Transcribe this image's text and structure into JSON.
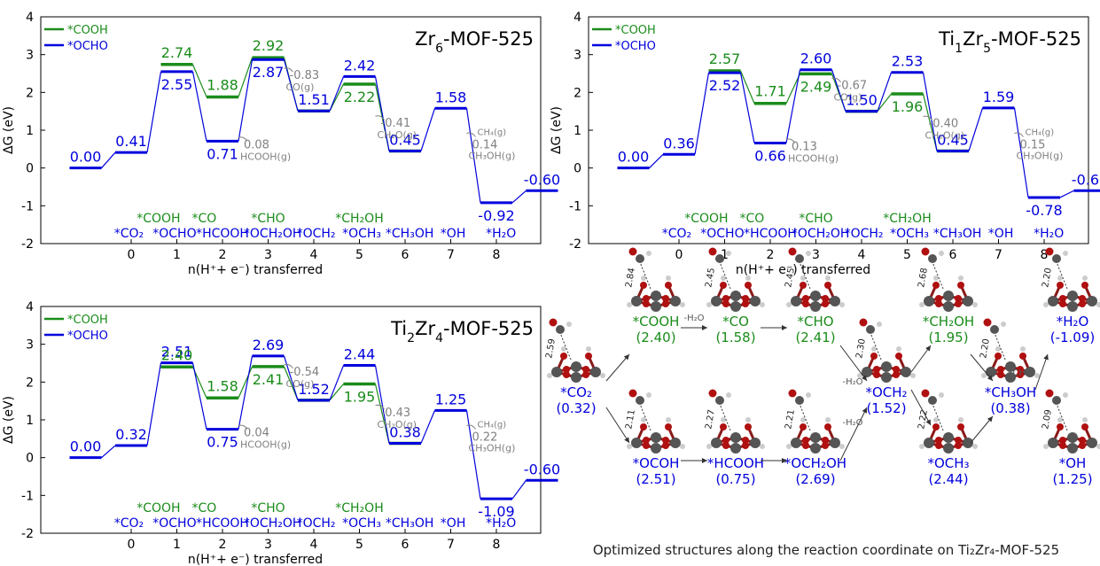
{
  "figure": {
    "caption": "Optimized structures along the reaction coordinate on Ti₂Zr₄-MOF-525",
    "colors": {
      "cooh": "#1a8c1a",
      "ocho": "#0000dd",
      "gray": "#808080"
    },
    "legend_labels": [
      "*COOH",
      "*OCHO"
    ]
  },
  "chart_data": [
    {
      "type": "line",
      "title_main": "Zr",
      "title_sub": "6",
      "title_rest": "-MOF-525",
      "xlabel": "n(H⁺+ e⁻) transferred",
      "ylabel": "ΔG (eV)",
      "ylim": [
        -2,
        4
      ],
      "x_ticks": [
        0,
        1,
        2,
        3,
        4,
        5,
        6,
        7,
        8
      ],
      "y_ticks": [
        4,
        3,
        2,
        1,
        0,
        -1,
        -2
      ],
      "series": [
        {
          "name": "*OCHO",
          "x": [
            -1,
            0,
            1,
            2,
            3,
            4,
            5,
            6,
            7,
            8,
            9
          ],
          "values": [
            0.0,
            0.41,
            2.55,
            0.71,
            2.87,
            1.51,
            2.42,
            0.45,
            1.58,
            -0.92,
            -0.6
          ],
          "labels": [
            "0.00",
            "0.41",
            "2.55",
            "0.71",
            "2.87",
            "1.51",
            "2.42",
            "0.45",
            "1.58",
            "-0.92",
            "-0.60"
          ]
        },
        {
          "name": "*COOH",
          "x": [
            1,
            2,
            3,
            4,
            5,
            6
          ],
          "values": [
            2.74,
            1.88,
            2.92,
            1.51,
            2.22,
            0.45
          ],
          "labels": [
            "2.74",
            "1.88",
            "2.92",
            "",
            "2.22",
            ""
          ]
        }
      ],
      "side_products": [
        {
          "x": 3,
          "value": "-0.83",
          "species": "CO(g)"
        },
        {
          "x": 2,
          "value": "0.08",
          "species": "HCOOH(g)"
        },
        {
          "x": 5,
          "value": "-0.41",
          "species": "CH₂O(g)"
        },
        {
          "x": 7,
          "species_top": "CH₄(g)",
          "value": "0.14",
          "species": "CH₃OH(g)"
        }
      ],
      "green_species": [
        "*COOH",
        "*CO",
        "*CHO",
        "*CH₂OH"
      ],
      "blue_species": [
        "*CO₂",
        "*OCHO",
        "*HCOOH",
        "*OCH₂OH",
        "*OCH₂",
        "*OCH₃",
        "*CH₃OH",
        "*OH",
        "*H₂O"
      ]
    },
    {
      "type": "line",
      "title_main": "Ti",
      "title_sub": "1",
      "title_rest": "Zr",
      "title_sub2": "5",
      "title_rest2": "-MOF-525",
      "xlabel": "n(H⁺+ e⁻) transferred",
      "ylabel": "ΔG (eV)",
      "ylim": [
        -2,
        4
      ],
      "x_ticks": [
        0,
        1,
        2,
        3,
        4,
        5,
        6,
        7,
        8
      ],
      "y_ticks": [
        4,
        3,
        2,
        1,
        0,
        -1,
        -2
      ],
      "series": [
        {
          "name": "*OCHO",
          "x": [
            -1,
            0,
            1,
            2,
            3,
            4,
            5,
            6,
            7,
            8,
            9
          ],
          "values": [
            0.0,
            0.36,
            2.52,
            0.66,
            2.6,
            1.5,
            2.53,
            0.45,
            1.59,
            -0.78,
            -0.6
          ],
          "labels": [
            "0.00",
            "0.36",
            "2.52",
            "0.66",
            "2.60",
            "1.50",
            "2.53",
            "0.45",
            "1.59",
            "-0.78",
            "-0.60"
          ]
        },
        {
          "name": "*COOH",
          "x": [
            1,
            2,
            3,
            4,
            5,
            6
          ],
          "values": [
            2.57,
            1.71,
            2.49,
            1.5,
            1.96,
            0.45
          ],
          "labels": [
            "2.57",
            "1.71",
            "2.49",
            "",
            "1.96",
            ""
          ]
        }
      ],
      "side_products": [
        {
          "x": 3,
          "value": "-0.67",
          "species": "CO(g)"
        },
        {
          "x": 2,
          "value": "0.13",
          "species": "HCOOH(g)"
        },
        {
          "x": 5,
          "value": "-0.40",
          "species": "CH₂O(g)"
        },
        {
          "x": 7,
          "species_top": "CH₄(g)",
          "value": "0.15",
          "species": "CH₃OH(g)"
        }
      ],
      "green_species": [
        "*COOH",
        "*CO",
        "*CHO",
        "*CH₂OH"
      ],
      "blue_species": [
        "*CO₂",
        "*OCHO",
        "*HCOOH",
        "*OCH₂OH",
        "*OCH₂",
        "*OCH₃",
        "*CH₃OH",
        "*OH",
        "*H₂O"
      ]
    },
    {
      "type": "line",
      "title_main": "Ti",
      "title_sub": "2",
      "title_rest": "Zr",
      "title_sub2": "4",
      "title_rest2": "-MOF-525",
      "xlabel": "n(H⁺+ e⁻) transferred",
      "ylabel": "ΔG (eV)",
      "ylim": [
        -2,
        4
      ],
      "x_ticks": [
        0,
        1,
        2,
        3,
        4,
        5,
        6,
        7,
        8
      ],
      "y_ticks": [
        4,
        3,
        2,
        1,
        0,
        -1,
        -2
      ],
      "series": [
        {
          "name": "*OCHO",
          "x": [
            -1,
            0,
            1,
            2,
            3,
            4,
            5,
            6,
            7,
            8,
            9
          ],
          "values": [
            0.0,
            0.32,
            2.51,
            0.75,
            2.69,
            1.52,
            2.44,
            0.38,
            1.25,
            -1.09,
            -0.6
          ],
          "labels": [
            "0.00",
            "0.32",
            "2.51",
            "0.75",
            "2.69",
            "1.52",
            "2.44",
            "0.38",
            "1.25",
            "-1.09",
            "-0.60"
          ]
        },
        {
          "name": "*COOH",
          "x": [
            1,
            2,
            3,
            4,
            5,
            6
          ],
          "values": [
            2.4,
            1.58,
            2.41,
            1.52,
            1.95,
            0.38
          ],
          "labels": [
            "2.40",
            "1.58",
            "2.41",
            "",
            "1.95",
            ""
          ]
        }
      ],
      "side_products": [
        {
          "x": 3,
          "value": "-0.54",
          "species": "CO(g)"
        },
        {
          "x": 2,
          "value": "0.04",
          "species": "HCOOH(g)"
        },
        {
          "x": 5,
          "value": "-0.43",
          "species": "CH₂O(g)"
        },
        {
          "x": 7,
          "species_top": "CH₄(g)",
          "value": "0.22",
          "species": "CH₃OH(g)"
        }
      ],
      "green_species": [
        "*COOH",
        "*CO",
        "*CHO",
        "*CH₂OH"
      ],
      "blue_species": [
        "*CO₂",
        "*OCHO",
        "*HCOOH",
        "*OCH₂OH",
        "*OCH₂",
        "*OCH₃",
        "*CH₃OH",
        "*OH",
        "*H₂O"
      ]
    }
  ],
  "structures": [
    {
      "name": "*CO₂",
      "energy": "(0.32)",
      "color": "blue",
      "dist": "2.59"
    },
    {
      "name": "*COOH",
      "energy": "(2.40)",
      "color": "green",
      "dist": "2.84"
    },
    {
      "name": "*CO",
      "energy": "(1.58)",
      "color": "green",
      "dist": "2.45"
    },
    {
      "name": "*CHO",
      "energy": "(2.41)",
      "color": "green",
      "dist": "2.45"
    },
    {
      "name": "*OCOH",
      "energy": "(2.51)",
      "color": "blue",
      "dist": "2.11"
    },
    {
      "name": "*HCOOH",
      "energy": "(0.75)",
      "color": "blue",
      "dist": "2.27"
    },
    {
      "name": "*OCH₂OH",
      "energy": "(2.69)",
      "color": "blue",
      "dist": "2.21"
    },
    {
      "name": "*OCH₂",
      "energy": "(1.52)",
      "color": "blue",
      "dist": "2.30"
    },
    {
      "name": "*CH₂OH",
      "energy": "(1.95)",
      "color": "green",
      "dist": "2.68"
    },
    {
      "name": "*OCH₃",
      "energy": "(2.44)",
      "color": "blue",
      "dist": "2.22"
    },
    {
      "name": "*CH₃OH",
      "energy": "(0.38)",
      "color": "blue",
      "dist": "2.20"
    },
    {
      "name": "*H₂O",
      "energy": "(-1.09)",
      "color": "blue",
      "dist": "2.20"
    },
    {
      "name": "*OH",
      "energy": "(1.25)",
      "color": "blue",
      "dist": "2.09"
    }
  ],
  "arrow_labels": [
    "-H₂O",
    "-H₂O",
    "-H₂O",
    "-CH₄"
  ]
}
